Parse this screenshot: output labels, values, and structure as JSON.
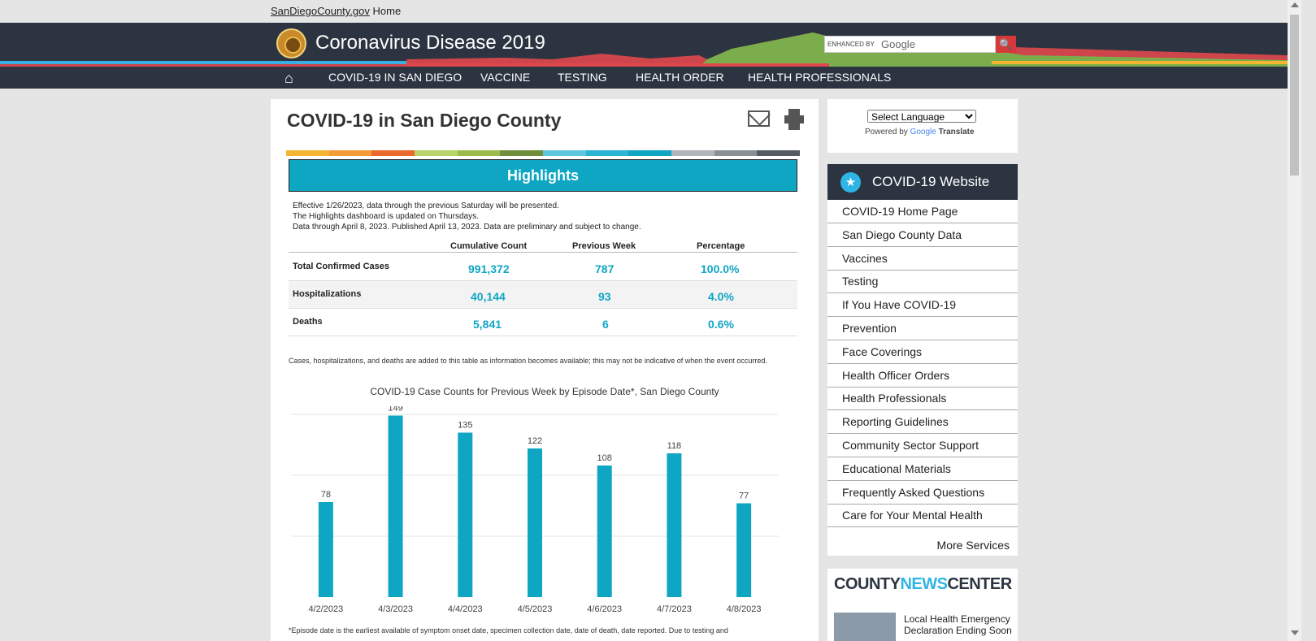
{
  "topbar": {
    "site_link": "SanDiegoCounty.gov",
    "home": "Home"
  },
  "header": {
    "title": "Coronavirus Disease 2019",
    "search_enhanced": "ENHANCED BY",
    "search_google": "Google"
  },
  "nav": {
    "items": [
      "COVID-19 IN SAN DIEGO",
      "VACCINE",
      "TESTING",
      "HEALTH ORDER",
      "HEALTH PROFESSIONALS"
    ]
  },
  "main": {
    "title": "COVID-19 in San Diego County",
    "highlights": "Highlights",
    "notes": [
      "Effective 1/26/2023, data through the previous Saturday will be presented.",
      "The Highlights dashboard is updated on Thursdays.",
      "Data through April 8, 2023. Published April 13, 2023. Data are preliminary and subject to change."
    ],
    "table": {
      "headers": [
        "Cumulative Count",
        "Previous Week",
        "Percentage"
      ],
      "rows": [
        {
          "label": "Total Confirmed Cases",
          "cumulative": "991,372",
          "previous": "787",
          "pct": "100.0%"
        },
        {
          "label": "Hospitalizations",
          "cumulative": "40,144",
          "previous": "93",
          "pct": "4.0%"
        },
        {
          "label": "Deaths",
          "cumulative": "5,841",
          "previous": "6",
          "pct": "0.6%"
        }
      ]
    },
    "footnote1": "Cases, hospitalizations, and deaths are added to this table as information becomes available; this may not be indicative of when the event occurred.",
    "footnote2": "*Episode date is the earliest available of symptom onset date, specimen collection date, date of death, date reported.  Due to testing and"
  },
  "chart_data": {
    "type": "bar",
    "title": "COVID-19 Case Counts for Previous Week by Episode Date*, San Diego County",
    "categories": [
      "4/2/2023",
      "4/3/2023",
      "4/4/2023",
      "4/5/2023",
      "4/6/2023",
      "4/7/2023",
      "4/8/2023"
    ],
    "values": [
      78,
      149,
      135,
      122,
      108,
      118,
      77
    ],
    "ylim": [
      0,
      150
    ],
    "grid": true,
    "color": "#0fa6c4"
  },
  "sidebar": {
    "select_language": "Select Language",
    "powered_by": "Powered by",
    "google": "Google",
    "translate": "Translate",
    "menu_title": "COVID-19 Website",
    "menu_items": [
      "COVID-19 Home Page",
      "San Diego County Data",
      "Vaccines",
      "Testing",
      "If You Have COVID-19",
      "Prevention",
      "Face Coverings",
      "Health Officer Orders",
      "Health Professionals",
      "Reporting Guidelines",
      "Community Sector Support",
      "Educational Materials",
      "Frequently Asked Questions",
      "Care for Your Mental Health"
    ],
    "more": "More Services",
    "news_logo_a": "COUNTY",
    "news_logo_b": "NEWS",
    "news_logo_c": "CENTER",
    "news_headline": "Local Health Emergency Declaration Ending Soon"
  },
  "colors": {
    "accent": "#0fa6c4",
    "header_bg": "#2b3440"
  }
}
